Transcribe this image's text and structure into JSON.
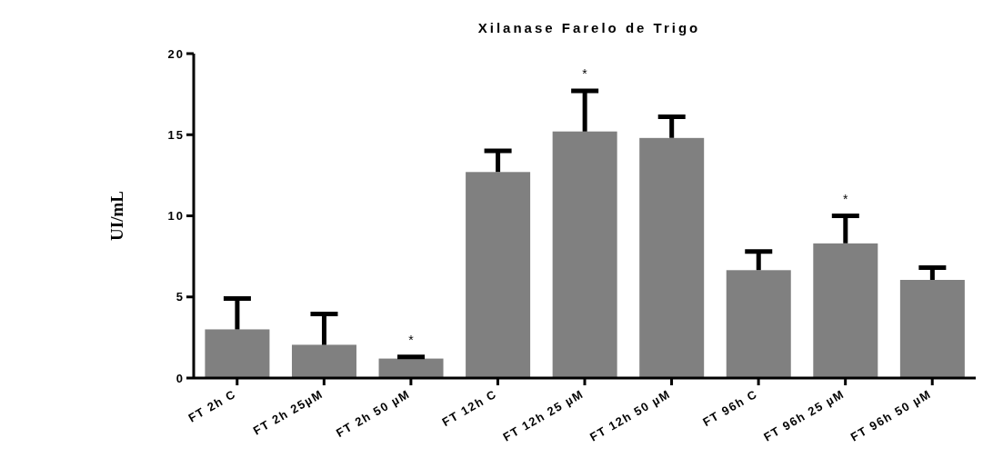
{
  "chart_data": {
    "type": "bar",
    "title": "Xilanase Farelo de Trigo",
    "ylabel": "UI/mL",
    "categories": [
      "FT 2h C",
      "FT 2h 25µM",
      "FT 2h 50 µM",
      "FT 12h C",
      "FT 12h 25 µM",
      "FT 12h 50 µM",
      "FT 96h C",
      "FT 96h 25 µM",
      "FT 96h 50 µM"
    ],
    "values": [
      3.0,
      2.05,
      1.2,
      12.7,
      15.2,
      14.8,
      6.65,
      8.3,
      6.05
    ],
    "errors": [
      [
        3.0,
        4.9
      ],
      [
        2.05,
        3.95
      ],
      [
        1.2,
        1.3
      ],
      [
        12.7,
        14.0
      ],
      [
        15.2,
        17.7
      ],
      [
        14.8,
        16.1
      ],
      [
        6.65,
        7.8
      ],
      [
        8.3,
        10.0
      ],
      [
        6.05,
        6.8
      ]
    ],
    "color": "#808080",
    "ylim": [
      0,
      20
    ],
    "yticks": [
      0,
      5,
      10,
      15,
      20
    ],
    "grid": false,
    "legend": false,
    "annotations": [
      {
        "text": "*",
        "x": "FT 2h 50 µM",
        "y": 1.3
      },
      {
        "text": "*",
        "x": "FT 12h 25 µM",
        "y": 17.7
      },
      {
        "text": "*",
        "x": "FT 96h 25 µM",
        "y": 10.0
      }
    ]
  }
}
